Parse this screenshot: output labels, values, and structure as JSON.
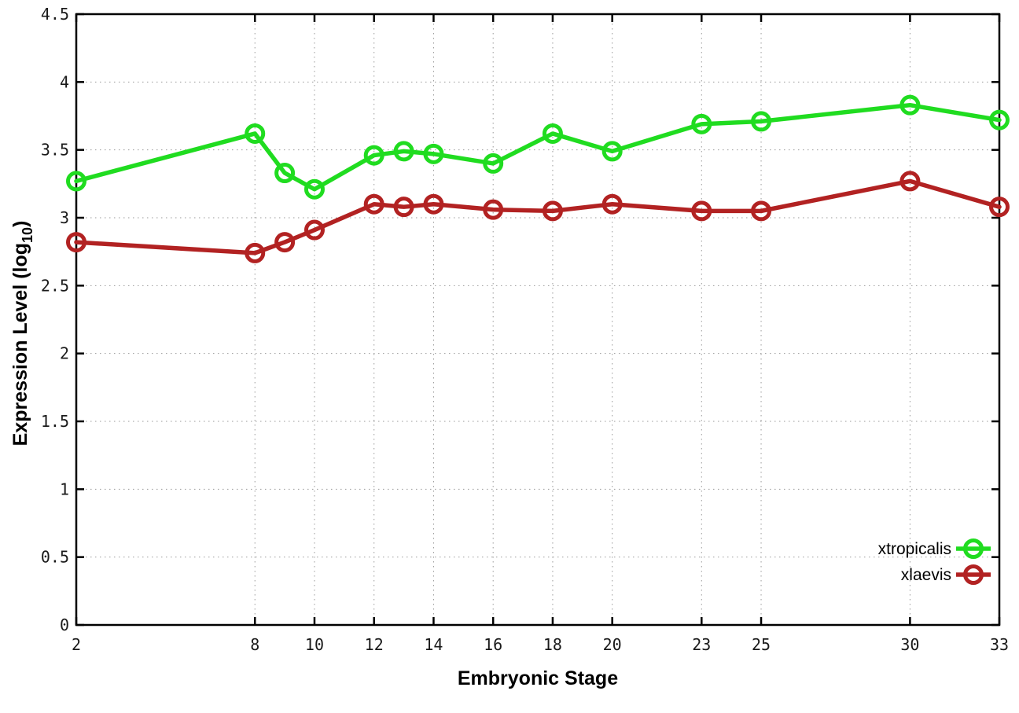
{
  "figure": {
    "background": "#ffffff",
    "axis_color": "#000000",
    "grid_color": "#9a9a9a",
    "text_color": "#1a1a1a"
  },
  "chart_data": {
    "type": "line",
    "title": "",
    "xlabel": "Embryonic Stage",
    "ylabel": {
      "main": "Expression Level (log",
      "sub": "10",
      "end": ")"
    },
    "xlim": [
      2,
      33
    ],
    "ylim": [
      0,
      4.5
    ],
    "x_ticks": [
      2,
      8,
      10,
      12,
      14,
      16,
      18,
      20,
      23,
      25,
      30,
      33
    ],
    "x_tick_labels": [
      "2",
      "8",
      "10",
      "12",
      "14",
      "16",
      "18",
      "20",
      "23",
      "25",
      "30",
      "33"
    ],
    "y_ticks": [
      0,
      0.5,
      1,
      1.5,
      2,
      2.5,
      3,
      3.5,
      4,
      4.5
    ],
    "y_tick_labels": [
      "0",
      "0.5",
      "1",
      "1.5",
      "2",
      "2.5",
      "3",
      "3.5",
      "4",
      "4.5"
    ],
    "grid": true,
    "marker": "open-circle",
    "legend_position": "bottom-right",
    "series": [
      {
        "name": "xtropicalis",
        "color": "#20dc20",
        "x": [
          2,
          8,
          9,
          10,
          12,
          13,
          14,
          16,
          18,
          20,
          23,
          25,
          30,
          33
        ],
        "y": [
          3.27,
          3.62,
          3.33,
          3.21,
          3.46,
          3.49,
          3.47,
          3.4,
          3.62,
          3.49,
          3.69,
          3.71,
          3.83,
          3.72
        ]
      },
      {
        "name": "xlaevis",
        "color": "#b22222",
        "x": [
          2,
          8,
          9,
          10,
          12,
          13,
          14,
          16,
          18,
          20,
          23,
          25,
          30,
          33
        ],
        "y": [
          2.82,
          2.74,
          2.82,
          2.91,
          3.1,
          3.08,
          3.1,
          3.06,
          3.05,
          3.1,
          3.05,
          3.05,
          3.27,
          3.08
        ]
      }
    ]
  }
}
